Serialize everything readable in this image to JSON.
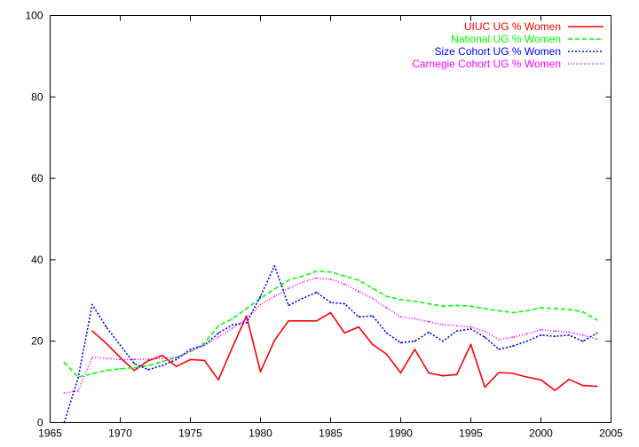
{
  "chart_data": {
    "type": "line",
    "title": "",
    "xlabel": "",
    "ylabel": "",
    "xlim": [
      1965,
      2005
    ],
    "ylim": [
      0,
      100
    ],
    "x_ticks": [
      1965,
      1970,
      1975,
      1980,
      1985,
      1990,
      1995,
      2000,
      2005
    ],
    "y_ticks": [
      0,
      20,
      40,
      60,
      80,
      100
    ],
    "grid": false,
    "legend_position": "top-right",
    "series": [
      {
        "name": "UIUC UG % Women",
        "color": "#ff0000",
        "dash": "solid",
        "x": [
          1968,
          1969,
          1970,
          1971,
          1972,
          1973,
          1974,
          1975,
          1976,
          1977,
          1978,
          1979,
          1980,
          1981,
          1982,
          1983,
          1984,
          1985,
          1986,
          1987,
          1988,
          1989,
          1990,
          1991,
          1992,
          1993,
          1994,
          1995,
          1996,
          1997,
          1998,
          1999,
          2000,
          2001,
          2002,
          2003,
          2004
        ],
        "values": [
          22.5,
          19.5,
          16.0,
          12.8,
          15.2,
          16.5,
          13.8,
          15.5,
          15.3,
          10.5,
          18.5,
          26.2,
          12.5,
          20.2,
          25.0,
          25.0,
          25.0,
          27.0,
          22.0,
          23.5,
          19.2,
          16.8,
          12.2,
          18.0,
          12.2,
          11.5,
          11.8,
          19.2,
          8.7,
          12.3,
          12.1,
          11.2,
          10.5,
          7.9,
          10.6,
          9.1,
          8.9
        ]
      },
      {
        "name": "National UG % Women",
        "color": "#00ff00",
        "dash": "dashed",
        "x": [
          1966,
          1967,
          1968,
          1969,
          1970,
          1971,
          1972,
          1973,
          1974,
          1975,
          1976,
          1977,
          1978,
          1979,
          1980,
          1981,
          1982,
          1983,
          1984,
          1985,
          1986,
          1987,
          1988,
          1989,
          1990,
          1991,
          1992,
          1993,
          1994,
          1995,
          1996,
          1997,
          1998,
          1999,
          2000,
          2001,
          2002,
          2003,
          2004
        ],
        "values": [
          14.8,
          11.2,
          12.0,
          12.8,
          13.2,
          13.5,
          14.0,
          15.0,
          16.0,
          17.5,
          19.5,
          23.8,
          25.5,
          28.0,
          30.5,
          32.8,
          35.0,
          36.0,
          37.2,
          37.0,
          36.0,
          35.0,
          33.0,
          31.0,
          30.2,
          29.8,
          29.2,
          28.6,
          28.8,
          28.6,
          28.0,
          27.5,
          27.0,
          27.5,
          28.2,
          28.0,
          27.8,
          27.2,
          25.2
        ]
      },
      {
        "name": "Size Cohort UG % Women",
        "color": "#0000ff",
        "dash": "dotted",
        "x": [
          1966,
          1967,
          1968,
          1969,
          1970,
          1971,
          1972,
          1973,
          1974,
          1975,
          1976,
          1977,
          1978,
          1979,
          1980,
          1981,
          1982,
          1983,
          1984,
          1985,
          1986,
          1987,
          1988,
          1989,
          1990,
          1991,
          1992,
          1993,
          1994,
          1995,
          1996,
          1997,
          1998,
          1999,
          2000,
          2001,
          2002,
          2003,
          2004
        ],
        "values": [
          0.0,
          11.0,
          29.0,
          23.5,
          19.0,
          14.5,
          13.0,
          14.0,
          15.5,
          18.0,
          19.0,
          22.0,
          24.0,
          24.5,
          31.0,
          38.5,
          28.8,
          30.5,
          32.0,
          29.5,
          29.2,
          26.0,
          26.2,
          22.0,
          19.6,
          20.0,
          22.2,
          20.0,
          22.5,
          23.0,
          21.0,
          18.0,
          18.8,
          20.0,
          21.5,
          21.2,
          21.5,
          20.0,
          22.0
        ]
      },
      {
        "name": "Carnegie Cohort UG % Women",
        "color": "#ff00ff",
        "dash": "fine-dotted",
        "x": [
          1966,
          1967,
          1968,
          1969,
          1970,
          1971,
          1972,
          1973,
          1974,
          1975,
          1976,
          1977,
          1978,
          1979,
          1980,
          1981,
          1982,
          1983,
          1984,
          1985,
          1986,
          1987,
          1988,
          1989,
          1990,
          1991,
          1992,
          1993,
          1994,
          1995,
          1996,
          1997,
          1998,
          1999,
          2000,
          2001,
          2002,
          2003,
          2004
        ],
        "values": [
          7.3,
          7.8,
          16.0,
          15.8,
          15.5,
          15.5,
          15.6,
          15.8,
          16.0,
          17.5,
          19.0,
          21.0,
          23.2,
          25.5,
          29.0,
          31.0,
          33.0,
          34.5,
          35.5,
          35.2,
          34.0,
          32.2,
          30.5,
          28.2,
          26.0,
          25.5,
          24.8,
          24.0,
          23.8,
          23.5,
          22.4,
          20.4,
          21.0,
          21.8,
          22.8,
          22.5,
          22.2,
          21.5,
          20.5
        ]
      }
    ]
  }
}
